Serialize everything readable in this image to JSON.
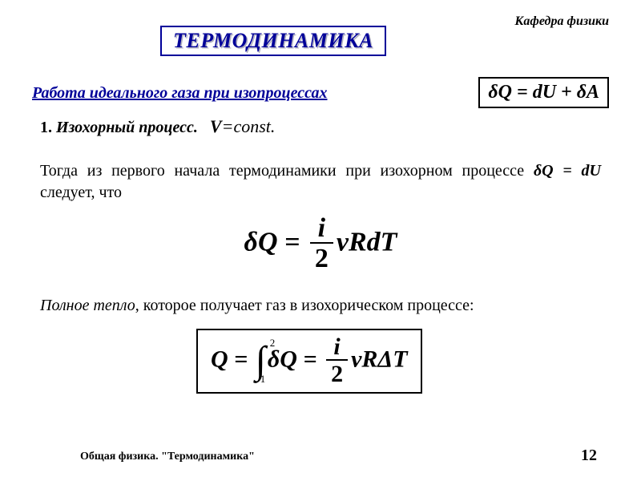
{
  "header": {
    "department": "Кафедра физики",
    "title": "ТЕРМОДИНАМИКА"
  },
  "subtitle": "Работа идеального газа при изопроцессах",
  "first_law_box": "δQ = dU + δA",
  "process": {
    "number": "1.",
    "name": "Изохорный процесс.",
    "condition_var": "V",
    "condition_eq": "=const."
  },
  "paragraph1": {
    "prefix": "Тогда из первого начала термодинамики при изохорном процессе ",
    "eq": "δQ = dU",
    "suffix": " следует, что"
  },
  "equation1": {
    "lhs": "δQ =",
    "frac_num": "i",
    "frac_den": "2",
    "rhs": "νRdT"
  },
  "paragraph2": {
    "emph": "Полное тепло",
    "rest": ", которое получает газ в изохорическом процессе:"
  },
  "equation2": {
    "Q": "Q =",
    "int_lower": "1",
    "int_upper": "2",
    "integrand": "δQ =",
    "frac_num": "i",
    "frac_den": "2",
    "rhs": "νRΔT"
  },
  "footer": {
    "left": "Общая физика. \"Термодинамика\"",
    "page": "12"
  },
  "style": {
    "title_color": "#000099",
    "text_color": "#000000",
    "background": "#ffffff"
  }
}
